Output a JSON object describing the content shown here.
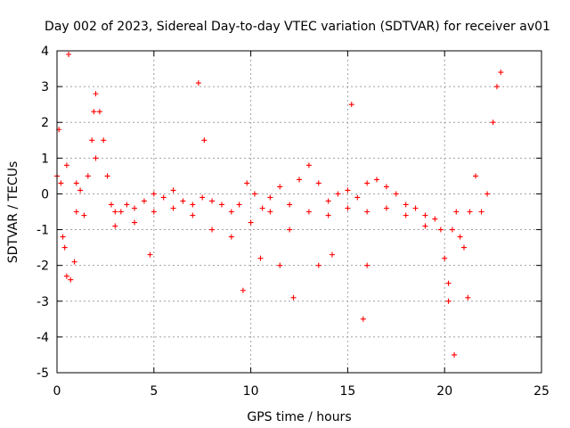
{
  "chart_data": {
    "type": "scatter",
    "title": "Day 002 of 2023, Sidereal Day-to-day VTEC variation (SDTVAR) for receiver av01",
    "xlabel": "GPS time / hours",
    "ylabel": "SDTVAR / TECUs",
    "xlim": [
      0,
      25
    ],
    "ylim": [
      -5,
      4
    ],
    "xticks": [
      "0",
      "5",
      "10",
      "15",
      "20",
      "25"
    ],
    "yticks": [
      "4",
      "3",
      "2",
      "1",
      "0",
      "-1",
      "-2",
      "-3",
      "-4",
      "-5"
    ],
    "grid": true,
    "marker": "+",
    "color": "#ff0000",
    "series": [
      {
        "name": "SDTVAR",
        "trace_points": [
          [
            0.0,
            0.5
          ],
          [
            0.1,
            1.8
          ],
          [
            0.2,
            0.3
          ],
          [
            0.3,
            -1.2
          ],
          [
            0.4,
            -1.5
          ],
          [
            0.5,
            -2.3
          ],
          [
            0.7,
            -2.4
          ],
          [
            0.9,
            -1.9
          ],
          [
            1.0,
            -0.5
          ],
          [
            1.2,
            0.1
          ],
          [
            1.4,
            -0.6
          ],
          [
            1.6,
            0.5
          ],
          [
            1.8,
            1.5
          ],
          [
            1.9,
            2.3
          ],
          [
            2.0,
            2.8
          ],
          [
            2.2,
            2.3
          ],
          [
            2.4,
            1.5
          ],
          [
            2.6,
            0.5
          ],
          [
            2.8,
            -0.3
          ],
          [
            3.0,
            -0.9
          ],
          [
            3.3,
            -0.5
          ],
          [
            3.6,
            -0.3
          ],
          [
            4.0,
            -0.4
          ],
          [
            4.5,
            -0.2
          ],
          [
            5.0,
            0.0
          ],
          [
            5.5,
            -0.1
          ],
          [
            6.0,
            0.1
          ],
          [
            6.5,
            -0.2
          ],
          [
            7.0,
            -0.3
          ],
          [
            7.5,
            -0.1
          ],
          [
            8.0,
            -0.2
          ],
          [
            8.5,
            -0.3
          ],
          [
            9.0,
            -0.5
          ],
          [
            9.4,
            -0.3
          ],
          [
            9.8,
            0.3
          ],
          [
            10.2,
            0.0
          ],
          [
            10.6,
            -0.4
          ],
          [
            11.0,
            -0.1
          ],
          [
            11.5,
            0.2
          ],
          [
            12.0,
            -0.3
          ],
          [
            12.5,
            0.4
          ],
          [
            13.0,
            0.8
          ],
          [
            13.5,
            0.3
          ],
          [
            14.0,
            -0.2
          ],
          [
            14.5,
            0.0
          ],
          [
            15.0,
            0.1
          ],
          [
            15.5,
            -0.1
          ],
          [
            16.0,
            0.3
          ],
          [
            16.5,
            0.4
          ],
          [
            17.0,
            0.2
          ],
          [
            17.5,
            0.0
          ],
          [
            18.0,
            -0.3
          ],
          [
            18.5,
            -0.4
          ],
          [
            19.0,
            -0.6
          ],
          [
            19.5,
            -0.7
          ],
          [
            19.8,
            -1.0
          ],
          [
            20.0,
            -1.8
          ],
          [
            20.2,
            -2.5
          ],
          [
            20.4,
            -1.0
          ],
          [
            20.6,
            -0.5
          ],
          [
            20.8,
            -1.2
          ],
          [
            21.0,
            -1.5
          ],
          [
            21.3,
            -0.5
          ],
          [
            21.6,
            0.5
          ],
          [
            21.9,
            -0.5
          ],
          [
            22.2,
            0.0
          ],
          [
            22.5,
            2.0
          ],
          [
            22.7,
            3.0
          ],
          [
            22.9,
            3.4
          ],
          [
            0.5,
            0.8
          ],
          [
            1.0,
            0.3
          ],
          [
            2.0,
            1.0
          ],
          [
            3.0,
            -0.5
          ],
          [
            4.0,
            -0.8
          ],
          [
            5.0,
            -0.5
          ],
          [
            6.0,
            -0.4
          ],
          [
            7.0,
            -0.6
          ],
          [
            8.0,
            -1.0
          ],
          [
            9.0,
            -1.2
          ],
          [
            10.0,
            -0.8
          ],
          [
            11.0,
            -0.5
          ],
          [
            12.0,
            -1.0
          ],
          [
            13.0,
            -0.5
          ],
          [
            14.0,
            -0.6
          ],
          [
            15.0,
            -0.4
          ],
          [
            16.0,
            -0.5
          ],
          [
            17.0,
            -0.4
          ],
          [
            18.0,
            -0.6
          ],
          [
            19.0,
            -0.9
          ],
          [
            9.6,
            -2.7
          ],
          [
            10.5,
            -1.8
          ],
          [
            11.5,
            -2.0
          ],
          [
            12.2,
            -2.9
          ],
          [
            13.5,
            -2.0
          ],
          [
            14.2,
            -1.7
          ],
          [
            15.8,
            -3.5
          ],
          [
            16.0,
            -2.0
          ],
          [
            20.2,
            -3.0
          ],
          [
            20.5,
            -4.5
          ],
          [
            21.2,
            -2.9
          ],
          [
            0.6,
            3.9
          ],
          [
            7.3,
            3.1
          ],
          [
            7.6,
            1.5
          ],
          [
            15.2,
            2.5
          ],
          [
            4.8,
            -1.7
          ]
        ]
      }
    ]
  }
}
